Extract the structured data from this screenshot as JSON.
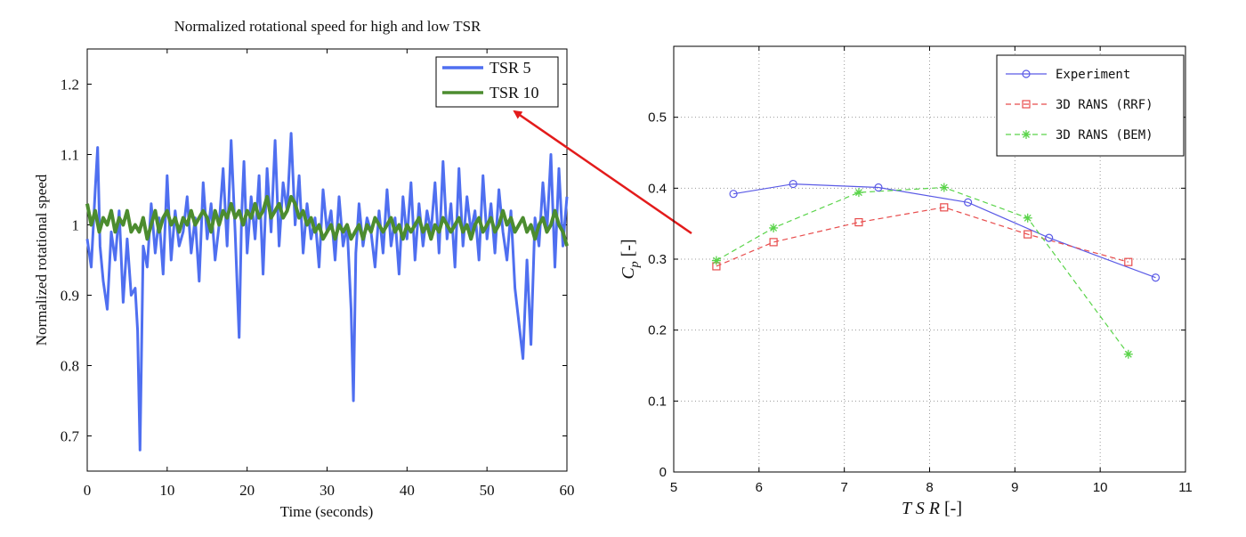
{
  "chart_data": [
    {
      "type": "line",
      "title": "Normalized rotational speed for high and low TSR",
      "xlabel": "Time (seconds)",
      "ylabel": "Normalized rotational speed",
      "xlim": [
        0,
        60
      ],
      "ylim": [
        0.65,
        1.25
      ],
      "xticks": [
        "0",
        "10",
        "20",
        "30",
        "40",
        "50",
        "60"
      ],
      "yticks": [
        "0.7",
        "0.8",
        "0.9",
        "1",
        "1.1",
        "1.2"
      ],
      "grid": false,
      "legend": "top-right",
      "series": [
        {
          "name": "TSR 5",
          "color": "#4f6ff0",
          "x": [
            0,
            0.5,
            1,
            1.3,
            1.6,
            2,
            2.5,
            3,
            3.5,
            4,
            4.5,
            5,
            5.5,
            6,
            6.3,
            6.6,
            7,
            7.5,
            8,
            8.5,
            9,
            9.5,
            10,
            10.5,
            11,
            11.5,
            12,
            12.5,
            13,
            13.5,
            14,
            14.5,
            15,
            15.5,
            16,
            16.5,
            17,
            17.5,
            18,
            18.5,
            19,
            19.3,
            19.6,
            20,
            20.5,
            21,
            21.5,
            22,
            22.5,
            23,
            23.5,
            24,
            24.5,
            25,
            25.5,
            26,
            26.5,
            27,
            27.5,
            28,
            28.5,
            29,
            29.5,
            30,
            30.5,
            31,
            31.5,
            32,
            32.5,
            33,
            33.3,
            33.6,
            34,
            34.5,
            35,
            35.5,
            36,
            36.5,
            37,
            37.5,
            38,
            38.5,
            39,
            39.5,
            40,
            40.5,
            41,
            41.5,
            42,
            42.5,
            43,
            43.5,
            44,
            44.5,
            45,
            45.5,
            46,
            46.5,
            47,
            47.5,
            48,
            48.5,
            49,
            49.5,
            50,
            50.5,
            51,
            51.5,
            52,
            52.5,
            53,
            53.5,
            54,
            54.5,
            55,
            55.5,
            56,
            56.5,
            57,
            57.5,
            58,
            58.5,
            59,
            59.5,
            60
          ],
          "y": [
            0.98,
            0.94,
            1.05,
            1.11,
            0.97,
            0.92,
            0.88,
            0.99,
            0.95,
            1.02,
            0.89,
            0.98,
            0.9,
            0.91,
            0.85,
            0.68,
            0.97,
            0.94,
            1.03,
            0.96,
            1.01,
            0.93,
            1.07,
            0.95,
            1.02,
            0.97,
            0.99,
            1.04,
            0.96,
            1.01,
            0.92,
            1.06,
            0.98,
            1.03,
            0.95,
            1,
            1.08,
            0.97,
            1.12,
            0.99,
            0.84,
            1.01,
            1.09,
            0.96,
            1.04,
            0.98,
            1.07,
            0.93,
            1.08,
            0.99,
            1.12,
            0.97,
            1.06,
            1.02,
            1.13,
            1,
            1.07,
            0.96,
            1.03,
            0.98,
            1.01,
            0.94,
            1.05,
            0.99,
            1.02,
            0.95,
            1.04,
            0.97,
            1,
            0.88,
            0.75,
            0.96,
            1.03,
            0.97,
            1.01,
            0.99,
            0.94,
            1.02,
            0.96,
            1.05,
            0.97,
            1.01,
            0.93,
            1.04,
            0.98,
            1.06,
            0.95,
            1.03,
            0.97,
            1.02,
            0.99,
            1.06,
            0.96,
            1.09,
            0.98,
            1.03,
            0.94,
            1.08,
            0.97,
            1.04,
            0.99,
            1.02,
            0.95,
            1.07,
            0.98,
            1.03,
            0.96,
            1.05,
            0.99,
            0.95,
            1.02,
            0.91,
            0.86,
            0.81,
            0.95,
            0.83,
            1.01,
            0.97,
            1.06,
            0.99,
            1.1,
            0.94,
            1.08,
            0.97,
            1.04
          ]
        },
        {
          "name": "TSR 10",
          "color": "#4c8c2f",
          "x": [
            0,
            0.5,
            1,
            1.5,
            2,
            2.5,
            3,
            3.5,
            4,
            4.5,
            5,
            5.5,
            6,
            6.5,
            7,
            7.5,
            8,
            8.5,
            9,
            9.5,
            10,
            10.5,
            11,
            11.5,
            12,
            12.5,
            13,
            13.5,
            14,
            14.5,
            15,
            15.5,
            16,
            16.5,
            17,
            17.5,
            18,
            18.5,
            19,
            19.5,
            20,
            20.5,
            21,
            21.5,
            22,
            22.5,
            23,
            23.5,
            24,
            24.5,
            25,
            25.5,
            26,
            26.5,
            27,
            27.5,
            28,
            28.5,
            29,
            29.5,
            30,
            30.5,
            31,
            31.5,
            32,
            32.5,
            33,
            33.5,
            34,
            34.5,
            35,
            35.5,
            36,
            36.5,
            37,
            37.5,
            38,
            38.5,
            39,
            39.5,
            40,
            40.5,
            41,
            41.5,
            42,
            42.5,
            43,
            43.5,
            44,
            44.5,
            45,
            45.5,
            46,
            46.5,
            47,
            47.5,
            48,
            48.5,
            49,
            49.5,
            50,
            50.5,
            51,
            51.5,
            52,
            52.5,
            53,
            53.5,
            54,
            54.5,
            55,
            55.5,
            56,
            56.5,
            57,
            57.5,
            58,
            58.5,
            59,
            59.5,
            60
          ],
          "y": [
            1.03,
            1,
            1.02,
            0.99,
            1.01,
            1,
            1.02,
            0.99,
            1.01,
            1,
            1.02,
            0.99,
            1,
            0.99,
            1.01,
            0.98,
            1,
            1.02,
            0.99,
            1.01,
            1.02,
            1,
            1.01,
            0.99,
            1.01,
            1,
            1.02,
            1,
            1.01,
            1.02,
            1.01,
            0.99,
            1.02,
            1,
            1.02,
            1.01,
            1.03,
            1.01,
            1.02,
            1,
            1.02,
            1.01,
            1.03,
            1.01,
            1.02,
            1.04,
            1.01,
            1.02,
            1.03,
            1.01,
            1.02,
            1.04,
            1.03,
            1.01,
            1.02,
            1,
            1.01,
            0.99,
            1,
            0.98,
            0.99,
            1,
            0.98,
            1,
            0.99,
            1,
            0.98,
            0.99,
            1,
            0.98,
            1,
            0.99,
            1.01,
            1,
            0.99,
            1,
            1.01,
            0.99,
            1,
            0.98,
            1,
            0.99,
            1,
            1.01,
            0.99,
            1,
            0.98,
            1,
            0.99,
            1.01,
            1,
            0.99,
            1,
            1.01,
            0.99,
            1,
            0.98,
            1,
            1.01,
            0.99,
            1,
            1.01,
            0.99,
            1,
            1.02,
            1,
            1.01,
            0.99,
            1,
            1.01,
            0.99,
            1,
            0.98,
            1,
            1.01,
            0.99,
            1,
            1.02,
            1,
            0.99,
            0.97
          ]
        }
      ]
    },
    {
      "type": "line",
      "title": "",
      "xlabel": "TSR [-]",
      "ylabel": "Cp [-]",
      "xlim": [
        5,
        11
      ],
      "ylim": [
        0,
        0.6
      ],
      "xticks": [
        "5",
        "6",
        "7",
        "8",
        "9",
        "10",
        "11"
      ],
      "yticks": [
        "0",
        "0.1",
        "0.2",
        "0.3",
        "0.4",
        "0.5"
      ],
      "grid": true,
      "legend": "top-right",
      "series": [
        {
          "name": "Experiment",
          "color": "#5a5ae6",
          "style": "solid",
          "marker": "circle",
          "x": [
            5.7,
            6.4,
            7.4,
            8.45,
            9.4,
            10.65
          ],
          "y": [
            0.392,
            0.406,
            0.401,
            0.38,
            0.33,
            0.274
          ]
        },
        {
          "name": "3D RANS (RRF)",
          "color": "#e84c4c",
          "style": "dashed",
          "marker": "square",
          "x": [
            5.5,
            6.17,
            7.17,
            8.17,
            9.15,
            10.33
          ],
          "y": [
            0.29,
            0.324,
            0.352,
            0.373,
            0.335,
            0.296
          ]
        },
        {
          "name": "3D RANS (BEM)",
          "color": "#5ad44a",
          "style": "dashed",
          "marker": "star",
          "x": [
            5.5,
            6.17,
            7.17,
            8.17,
            9.15,
            10.33
          ],
          "y": [
            0.298,
            0.344,
            0.394,
            0.401,
            0.358,
            0.166
          ]
        }
      ]
    }
  ]
}
